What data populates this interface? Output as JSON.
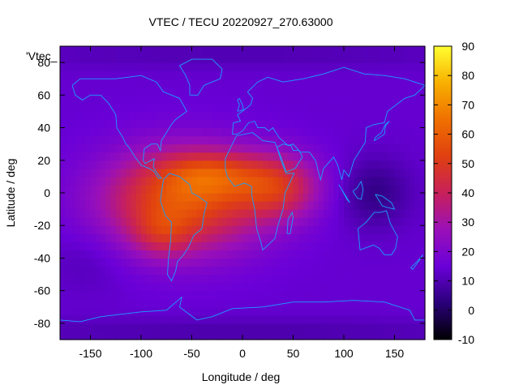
{
  "chart_data": {
    "type": "heatmap",
    "title": "VTEC / TECU 20220927_270.63000",
    "xlabel": "Longitude / deg",
    "ylabel": "Latitude / deg",
    "key_label": "'Vtec_",
    "xlim": [
      -180,
      180
    ],
    "ylim": [
      -90,
      90
    ],
    "xticks": [
      -150,
      -100,
      -50,
      0,
      50,
      100,
      150
    ],
    "yticks": [
      -80,
      -60,
      -40,
      -20,
      0,
      20,
      40,
      60,
      80
    ],
    "colorbar": {
      "range": [
        -10,
        90
      ],
      "ticks": [
        -10,
        0,
        10,
        20,
        30,
        40,
        50,
        60,
        70,
        80,
        90
      ],
      "palette": [
        "#000000",
        "#2a007a",
        "#6a00d8",
        "#9a10b8",
        "#c8205a",
        "#e04010",
        "#f07000",
        "#f8b000",
        "#ffff30"
      ]
    },
    "background_level": 14,
    "anomalies": [
      {
        "lon": -60,
        "lat": -5,
        "sigma_lon": 55,
        "sigma_lat": 22,
        "amplitude": 42
      },
      {
        "lon": -30,
        "lat": 12,
        "sigma_lon": 35,
        "sigma_lat": 10,
        "amplitude": 20
      },
      {
        "lon": 35,
        "lat": 4,
        "sigma_lon": 30,
        "sigma_lat": 14,
        "amplitude": 28
      },
      {
        "lon": -80,
        "lat": -25,
        "sigma_lon": 20,
        "sigma_lat": 10,
        "amplitude": 12
      },
      {
        "lon": -150,
        "lat": -40,
        "sigma_lon": 30,
        "sigma_lat": 15,
        "amplitude": -4
      },
      {
        "lon": 130,
        "lat": 0,
        "sigma_lon": 25,
        "sigma_lat": 15,
        "amplitude": -10
      },
      {
        "lon": 0,
        "lat": -85,
        "sigma_lon": 200,
        "sigma_lat": 6,
        "amplitude": -5
      },
      {
        "lon": 0,
        "lat": 85,
        "sigma_lon": 200,
        "sigma_lat": 6,
        "amplitude": -4
      }
    ],
    "coastlines": [
      {
        "name": "north-america",
        "points": [
          [
            -168,
            66
          ],
          [
            -160,
            70
          ],
          [
            -140,
            70
          ],
          [
            -125,
            70
          ],
          [
            -100,
            72
          ],
          [
            -85,
            68
          ],
          [
            -78,
            62
          ],
          [
            -70,
            60
          ],
          [
            -62,
            58
          ],
          [
            -55,
            50
          ],
          [
            -66,
            45
          ],
          [
            -70,
            42
          ],
          [
            -76,
            36
          ],
          [
            -80,
            32
          ],
          [
            -81,
            26
          ],
          [
            -84,
            30
          ],
          [
            -90,
            30
          ],
          [
            -97,
            27
          ],
          [
            -98,
            20
          ],
          [
            -96,
            18
          ],
          [
            -90,
            20
          ],
          [
            -87,
            21
          ],
          [
            -88,
            16
          ],
          [
            -84,
            12
          ],
          [
            -80,
            9
          ],
          [
            -83,
            9
          ],
          [
            -87,
            13
          ],
          [
            -92,
            15
          ],
          [
            -100,
            17
          ],
          [
            -106,
            22
          ],
          [
            -112,
            28
          ],
          [
            -115,
            30
          ],
          [
            -118,
            34
          ],
          [
            -124,
            40
          ],
          [
            -125,
            48
          ],
          [
            -132,
            55
          ],
          [
            -140,
            60
          ],
          [
            -150,
            60
          ],
          [
            -158,
            57
          ],
          [
            -165,
            60
          ],
          [
            -168,
            66
          ]
        ]
      },
      {
        "name": "south-america",
        "points": [
          [
            -78,
            8
          ],
          [
            -72,
            12
          ],
          [
            -62,
            10
          ],
          [
            -52,
            5
          ],
          [
            -50,
            0
          ],
          [
            -44,
            -2
          ],
          [
            -35,
            -6
          ],
          [
            -38,
            -13
          ],
          [
            -40,
            -22
          ],
          [
            -48,
            -26
          ],
          [
            -53,
            -33
          ],
          [
            -58,
            -38
          ],
          [
            -64,
            -42
          ],
          [
            -66,
            -48
          ],
          [
            -70,
            -54
          ],
          [
            -74,
            -50
          ],
          [
            -73,
            -40
          ],
          [
            -71,
            -30
          ],
          [
            -70,
            -18
          ],
          [
            -76,
            -14
          ],
          [
            -81,
            -5
          ],
          [
            -80,
            0
          ],
          [
            -78,
            8
          ]
        ]
      },
      {
        "name": "greenland",
        "points": [
          [
            -52,
            60
          ],
          [
            -44,
            60
          ],
          [
            -38,
            66
          ],
          [
            -22,
            70
          ],
          [
            -20,
            76
          ],
          [
            -30,
            82
          ],
          [
            -50,
            82
          ],
          [
            -62,
            78
          ],
          [
            -56,
            72
          ],
          [
            -52,
            66
          ],
          [
            -52,
            60
          ]
        ]
      },
      {
        "name": "africa",
        "points": [
          [
            -17,
            21
          ],
          [
            -10,
            30
          ],
          [
            -6,
            35
          ],
          [
            10,
            37
          ],
          [
            20,
            32
          ],
          [
            32,
            31
          ],
          [
            34,
            28
          ],
          [
            38,
            20
          ],
          [
            43,
            12
          ],
          [
            51,
            12
          ],
          [
            42,
            0
          ],
          [
            40,
            -10
          ],
          [
            35,
            -20
          ],
          [
            32,
            -28
          ],
          [
            20,
            -35
          ],
          [
            18,
            -30
          ],
          [
            14,
            -22
          ],
          [
            12,
            -10
          ],
          [
            9,
            -1
          ],
          [
            9,
            4
          ],
          [
            2,
            6
          ],
          [
            -8,
            4
          ],
          [
            -15,
            10
          ],
          [
            -17,
            15
          ],
          [
            -17,
            21
          ]
        ]
      },
      {
        "name": "eurasia",
        "points": [
          [
            -10,
            36
          ],
          [
            -9,
            43
          ],
          [
            -2,
            44
          ],
          [
            -5,
            48
          ],
          [
            2,
            51
          ],
          [
            8,
            54
          ],
          [
            10,
            58
          ],
          [
            5,
            62
          ],
          [
            15,
            68
          ],
          [
            25,
            71
          ],
          [
            40,
            68
          ],
          [
            60,
            70
          ],
          [
            80,
            73
          ],
          [
            100,
            77
          ],
          [
            120,
            73
          ],
          [
            140,
            72
          ],
          [
            160,
            70
          ],
          [
            180,
            66
          ],
          [
            170,
            60
          ],
          [
            160,
            58
          ],
          [
            143,
            50
          ],
          [
            140,
            43
          ],
          [
            130,
            42
          ],
          [
            122,
            40
          ],
          [
            121,
            31
          ],
          [
            110,
            20
          ],
          [
            105,
            10
          ],
          [
            100,
            14
          ],
          [
            98,
            8
          ],
          [
            94,
            17
          ],
          [
            90,
            22
          ],
          [
            80,
            15
          ],
          [
            77,
            8
          ],
          [
            72,
            20
          ],
          [
            66,
            25
          ],
          [
            57,
            25
          ],
          [
            50,
            30
          ],
          [
            45,
            29
          ],
          [
            36,
            34
          ],
          [
            30,
            40
          ],
          [
            26,
            38
          ],
          [
            22,
            40
          ],
          [
            15,
            40
          ],
          [
            12,
            44
          ],
          [
            6,
            43
          ],
          [
            0,
            38
          ],
          [
            -5,
            36
          ],
          [
            -10,
            36
          ]
        ]
      },
      {
        "name": "arabia",
        "points": [
          [
            34,
            28
          ],
          [
            38,
            22
          ],
          [
            43,
            13
          ],
          [
            52,
            15
          ],
          [
            59,
            22
          ],
          [
            56,
            26
          ],
          [
            50,
            26
          ],
          [
            48,
            29
          ],
          [
            40,
            30
          ],
          [
            34,
            28
          ]
        ]
      },
      {
        "name": "australia",
        "points": [
          [
            114,
            -22
          ],
          [
            122,
            -18
          ],
          [
            130,
            -12
          ],
          [
            136,
            -12
          ],
          [
            142,
            -11
          ],
          [
            146,
            -19
          ],
          [
            153,
            -27
          ],
          [
            151,
            -34
          ],
          [
            147,
            -38
          ],
          [
            140,
            -38
          ],
          [
            135,
            -34
          ],
          [
            129,
            -32
          ],
          [
            116,
            -35
          ],
          [
            114,
            -22
          ]
        ]
      },
      {
        "name": "madagascar",
        "points": [
          [
            44,
            -25
          ],
          [
            47,
            -25
          ],
          [
            50,
            -15
          ],
          [
            49,
            -12
          ],
          [
            45,
            -16
          ],
          [
            44,
            -25
          ]
        ]
      },
      {
        "name": "uk",
        "points": [
          [
            -5,
            50
          ],
          [
            1,
            51
          ],
          [
            0,
            54
          ],
          [
            -3,
            58
          ],
          [
            -5,
            57
          ],
          [
            -3,
            54
          ],
          [
            -5,
            50
          ]
        ]
      },
      {
        "name": "japan",
        "points": [
          [
            130,
            32
          ],
          [
            135,
            34
          ],
          [
            140,
            36
          ],
          [
            141,
            41
          ],
          [
            145,
            44
          ],
          [
            141,
            42
          ],
          [
            137,
            37
          ],
          [
            131,
            34
          ],
          [
            130,
            32
          ]
        ]
      },
      {
        "name": "new-zealand",
        "points": [
          [
            166,
            -46
          ],
          [
            174,
            -41
          ],
          [
            178,
            -38
          ],
          [
            176,
            -40
          ],
          [
            168,
            -47
          ],
          [
            166,
            -46
          ]
        ]
      },
      {
        "name": "borneo",
        "points": [
          [
            109,
            1
          ],
          [
            113,
            -3
          ],
          [
            117,
            -4
          ],
          [
            119,
            2
          ],
          [
            117,
            7
          ],
          [
            113,
            3
          ],
          [
            109,
            1
          ]
        ]
      },
      {
        "name": "sumatra",
        "points": [
          [
            95,
            5
          ],
          [
            100,
            0
          ],
          [
            106,
            -6
          ],
          [
            103,
            -4
          ],
          [
            98,
            2
          ],
          [
            95,
            5
          ]
        ]
      },
      {
        "name": "new-guinea",
        "points": [
          [
            131,
            -1
          ],
          [
            138,
            -2
          ],
          [
            147,
            -6
          ],
          [
            150,
            -10
          ],
          [
            143,
            -9
          ],
          [
            138,
            -8
          ],
          [
            131,
            -1
          ]
        ]
      },
      {
        "name": "antarctica",
        "points": [
          [
            -180,
            -78
          ],
          [
            -160,
            -79
          ],
          [
            -140,
            -76
          ],
          [
            -100,
            -73
          ],
          [
            -75,
            -72
          ],
          [
            -60,
            -64
          ],
          [
            -62,
            -70
          ],
          [
            -45,
            -78
          ],
          [
            -30,
            -76
          ],
          [
            -10,
            -71
          ],
          [
            20,
            -70
          ],
          [
            50,
            -67
          ],
          [
            80,
            -67
          ],
          [
            110,
            -66
          ],
          [
            140,
            -67
          ],
          [
            165,
            -72
          ],
          [
            170,
            -78
          ],
          [
            180,
            -78
          ]
        ]
      }
    ]
  }
}
